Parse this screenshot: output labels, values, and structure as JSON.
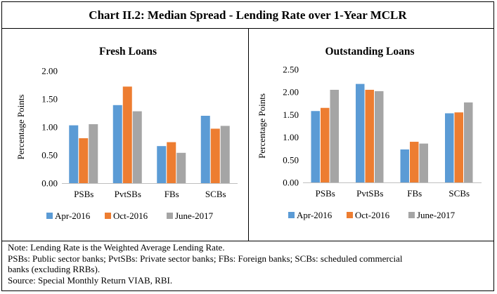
{
  "title": "Chart II.2: Median Spread - Lending Rate over 1-Year MCLR",
  "colors": {
    "Apr-2016": "#5b9bd5",
    "Oct-2016": "#ed7d31",
    "June-2017": "#a5a5a5"
  },
  "chart_data": [
    {
      "type": "bar",
      "title": "Fresh Loans",
      "ylabel": "Percentage Points",
      "categories": [
        "PSBs",
        "PvtSBs",
        "FBs",
        "SCBs"
      ],
      "series": [
        {
          "name": "Apr-2016",
          "values": [
            1.03,
            1.39,
            0.66,
            1.2
          ]
        },
        {
          "name": "Oct-2016",
          "values": [
            0.8,
            1.72,
            0.73,
            0.97
          ]
        },
        {
          "name": "June-2017",
          "values": [
            1.05,
            1.28,
            0.54,
            1.02
          ]
        }
      ],
      "ylim": [
        0,
        2.0
      ],
      "yticks": [
        "0.00",
        "0.50",
        "1.00",
        "1.50",
        "2.00"
      ],
      "grid": false,
      "legend": "bottom"
    },
    {
      "type": "bar",
      "title": "Outstanding Loans",
      "ylabel": "Percentage Points",
      "categories": [
        "PSBs",
        "PvtSBs",
        "FBs",
        "SCBs"
      ],
      "series": [
        {
          "name": "Apr-2016",
          "values": [
            1.58,
            2.18,
            0.73,
            1.53
          ]
        },
        {
          "name": "Oct-2016",
          "values": [
            1.65,
            2.05,
            0.9,
            1.55
          ]
        },
        {
          "name": "June-2017",
          "values": [
            2.05,
            2.02,
            0.86,
            1.77
          ]
        }
      ],
      "ylim": [
        0,
        2.5
      ],
      "yticks": [
        "0.00",
        "0.50",
        "1.00",
        "1.50",
        "2.00",
        "2.50"
      ],
      "grid": false,
      "legend": "bottom"
    }
  ],
  "notes": [
    "Note: Lending Rate is the Weighted Average Lending Rate.",
    "PSBs: Public sector banks; PvtSBs: Private sector banks; FBs: Foreign banks; SCBs: scheduled commercial",
    "banks (excluding RRBs).",
    "Source: Special Monthly Return VIAB, RBI."
  ]
}
